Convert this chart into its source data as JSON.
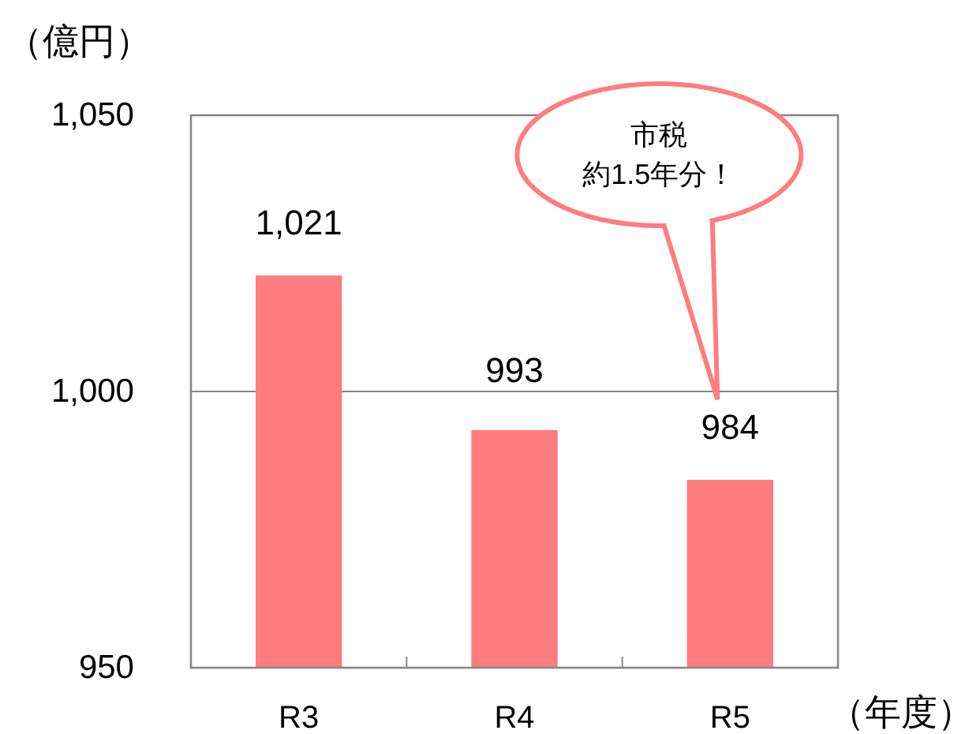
{
  "chart_data": {
    "type": "bar",
    "ylabel": "（億円）",
    "xlabel": "（年度）",
    "categories": [
      "R3",
      "R4",
      "R5"
    ],
    "values": [
      1021,
      993,
      984
    ],
    "value_labels": [
      "1,021",
      "993",
      "984"
    ],
    "color": "#ff7c80",
    "ylim": [
      950,
      1050
    ],
    "yticks": [
      950,
      {
        "value": 1000,
        "label": "1,000"
      },
      {
        "value": 1050,
        "label": "1,050"
      }
    ],
    "grid": "y",
    "annotations": [
      "市税約1.5年分！"
    ]
  }
}
